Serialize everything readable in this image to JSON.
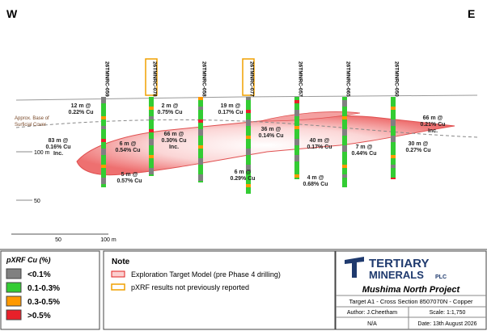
{
  "header": {
    "west": "W",
    "east": "E"
  },
  "drillholes": [
    {
      "id": "26TMNRC-059",
      "highlighted": false
    },
    {
      "id": "26TMNRC-078",
      "highlighted": true
    },
    {
      "id": "26TMNRC-058",
      "highlighted": false
    },
    {
      "id": "26TMNRC-077",
      "highlighted": true
    },
    {
      "id": "26TMNRC-057",
      "highlighted": false
    },
    {
      "id": "26TMNRC-065",
      "highlighted": false
    },
    {
      "id": "26TMNRC-050",
      "highlighted": false
    }
  ],
  "intercepts": [
    {
      "lines": [
        "12 m @",
        "0.22% Cu"
      ]
    },
    {
      "lines": [
        "2 m @",
        "0.75% Cu"
      ]
    },
    {
      "lines": [
        "19 m @",
        "0.17% Cu"
      ]
    },
    {
      "lines": [
        "66 m @",
        "0.21% Cu",
        "Inc."
      ]
    },
    {
      "lines": [
        "83 m @",
        "0.16% Cu",
        "Inc."
      ]
    },
    {
      "lines": [
        "6 m @",
        "0.54% Cu"
      ]
    },
    {
      "lines": [
        "66 m @",
        "0.30% Cu",
        "Inc."
      ]
    },
    {
      "lines": [
        "36 m @",
        "0.14% Cu"
      ]
    },
    {
      "lines": [
        "40 m @",
        "0.17% Cu"
      ]
    },
    {
      "lines": [
        "7 m @",
        "0.44% Cu"
      ]
    },
    {
      "lines": [
        "30 m @",
        "0.27% Cu"
      ]
    },
    {
      "lines": [
        "5 m @",
        "0.57% Cu"
      ]
    },
    {
      "lines": [
        "6 m @",
        "0.29% Cu"
      ]
    },
    {
      "lines": [
        "4 m @",
        "0.68% Cu"
      ]
    }
  ],
  "cover_label": [
    "Approx. Base of",
    "Surficial Cover"
  ],
  "elevation_labels": [
    "100 m",
    "50"
  ],
  "scale_bar": [
    "50",
    "100 m"
  ],
  "legend": {
    "title": "pXRF Cu (%)",
    "items": [
      {
        "label": "<0.1%",
        "color": "#808080"
      },
      {
        "label": "0.1-0.3%",
        "color": "#33cc33"
      },
      {
        "label": "0.3-0.5%",
        "color": "#ff9900"
      },
      {
        "label": ">0.5%",
        "color": "#e8202a"
      }
    ]
  },
  "note": {
    "title": "Note",
    "items": [
      "Exploration Target Model (pre Phase 4 drilling)",
      "pXRF results not previously reported"
    ]
  },
  "title_block": {
    "logo_main": "TERTIARY",
    "logo_sub": "MINERALS",
    "logo_suffix": "PLC",
    "project": "Mushima North Project",
    "subtitle": "Target A1 - Cross Section 8507070N - Copper",
    "author": "Author: J.Cheetham",
    "scale": "Scale: 1:1,750",
    "ref": "N/A",
    "date": "Date: 13th August 2026"
  }
}
